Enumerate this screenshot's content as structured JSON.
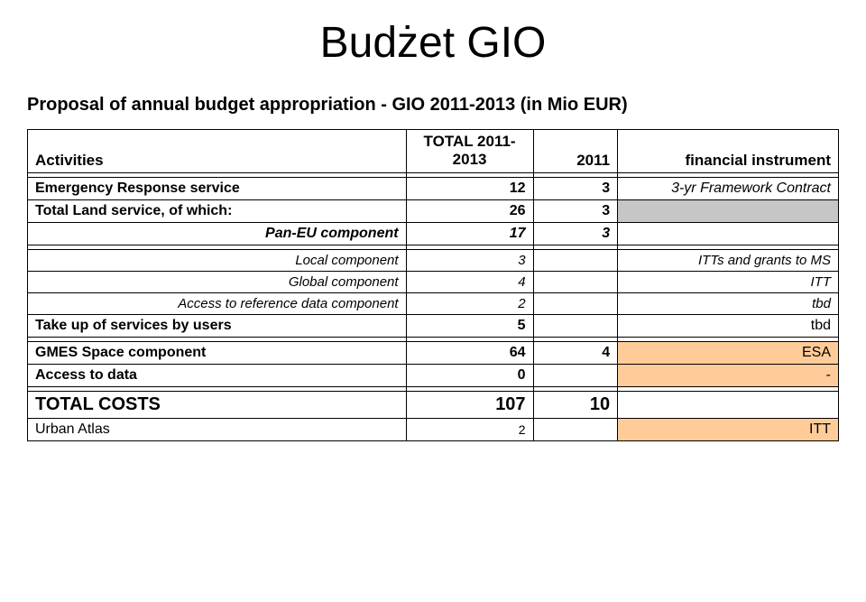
{
  "title": "Budżet GIO",
  "subtitle": "Proposal of annual budget appropriation - GIO 2011-2013 (in Mio EUR)",
  "header": {
    "activities": "Activities",
    "total_line1": "TOTAL 2011-",
    "total_line2": "2013",
    "year": "2011",
    "instrument": "financial instrument"
  },
  "rows": {
    "emergency": {
      "label": "Emergency Response service",
      "total": "12",
      "year": "3",
      "instr": "3-yr Framework Contract"
    },
    "totalland": {
      "label": "Total Land service, of which:",
      "total": "26",
      "year": "3",
      "instr": ""
    },
    "paneu": {
      "label": "Pan-EU component",
      "total": "17",
      "year": "3",
      "instr": ""
    },
    "local": {
      "label": "Local component",
      "total": "3",
      "year": "",
      "instr": "ITTs and grants to MS"
    },
    "global": {
      "label": "Global component",
      "total": "4",
      "year": "",
      "instr": "ITT"
    },
    "access_ref": {
      "label": "Access to reference data component",
      "total": "2",
      "year": "",
      "instr": "tbd"
    },
    "takeup": {
      "label": "Take up of services by users",
      "total": "5",
      "year": "",
      "instr": "tbd"
    },
    "gmes": {
      "label": "GMES Space component",
      "total": "64",
      "year": "4",
      "instr": "ESA"
    },
    "access_data": {
      "label": "Access to data",
      "total": "0",
      "year": "",
      "instr": "-"
    },
    "total_costs": {
      "label": "TOTAL COSTS",
      "total": "107",
      "year": "10",
      "instr": ""
    },
    "urban": {
      "label": "Urban Atlas",
      "total": "2",
      "year": "",
      "instr": "ITT"
    }
  },
  "colors": {
    "gray": "#c6c6c6",
    "orange": "#ffcc99",
    "white": "#ffffff",
    "black": "#000000"
  }
}
